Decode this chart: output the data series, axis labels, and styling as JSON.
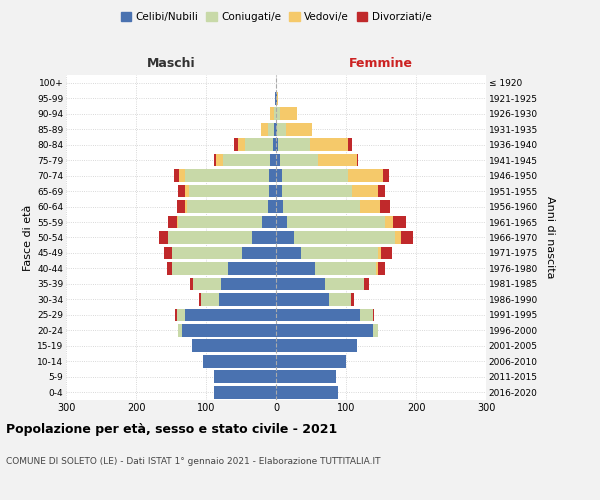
{
  "age_groups": [
    "0-4",
    "5-9",
    "10-14",
    "15-19",
    "20-24",
    "25-29",
    "30-34",
    "35-39",
    "40-44",
    "45-49",
    "50-54",
    "55-59",
    "60-64",
    "65-69",
    "70-74",
    "75-79",
    "80-84",
    "85-89",
    "90-94",
    "95-99",
    "100+"
  ],
  "birth_years": [
    "2016-2020",
    "2011-2015",
    "2006-2010",
    "2001-2005",
    "1996-2000",
    "1991-1995",
    "1986-1990",
    "1981-1985",
    "1976-1980",
    "1971-1975",
    "1966-1970",
    "1961-1965",
    "1956-1960",
    "1951-1955",
    "1946-1950",
    "1941-1945",
    "1936-1940",
    "1931-1935",
    "1926-1930",
    "1921-1925",
    "≤ 1920"
  ],
  "maschi": {
    "celibi": [
      88,
      88,
      105,
      120,
      135,
      130,
      82,
      78,
      68,
      48,
      35,
      20,
      12,
      10,
      10,
      8,
      5,
      3,
      0,
      1,
      0
    ],
    "coniugati": [
      0,
      0,
      0,
      0,
      5,
      12,
      25,
      40,
      80,
      100,
      120,
      120,
      115,
      115,
      120,
      68,
      40,
      8,
      3,
      1,
      0
    ],
    "vedovi": [
      0,
      0,
      0,
      0,
      0,
      0,
      0,
      0,
      0,
      0,
      0,
      2,
      3,
      5,
      8,
      10,
      10,
      10,
      5,
      0,
      0
    ],
    "divorziati": [
      0,
      0,
      0,
      0,
      0,
      2,
      3,
      5,
      8,
      12,
      12,
      12,
      12,
      10,
      8,
      2,
      5,
      0,
      0,
      0,
      0
    ]
  },
  "femmine": {
    "nubili": [
      88,
      85,
      100,
      115,
      138,
      120,
      75,
      70,
      55,
      35,
      25,
      15,
      10,
      8,
      8,
      5,
      3,
      2,
      0,
      1,
      0
    ],
    "coniugate": [
      0,
      0,
      0,
      0,
      8,
      18,
      32,
      55,
      88,
      110,
      145,
      140,
      110,
      100,
      95,
      55,
      45,
      12,
      5,
      0,
      0
    ],
    "vedove": [
      0,
      0,
      0,
      0,
      0,
      0,
      0,
      0,
      3,
      5,
      8,
      12,
      28,
      38,
      50,
      55,
      55,
      38,
      25,
      2,
      0
    ],
    "divorziate": [
      0,
      0,
      0,
      0,
      0,
      2,
      5,
      8,
      10,
      15,
      18,
      18,
      15,
      10,
      8,
      2,
      5,
      0,
      0,
      0,
      0
    ]
  },
  "colors": {
    "celibi": "#4a72b0",
    "coniugati": "#c8d9a8",
    "vedovi": "#f5c96a",
    "divorziati": "#c0292b"
  },
  "xlim": 300,
  "title": "Popolazione per età, sesso e stato civile - 2021",
  "subtitle": "COMUNE DI SOLETO (LE) - Dati ISTAT 1° gennaio 2021 - Elaborazione TUTTITALIA.IT",
  "ylabel_left": "Fasce di età",
  "ylabel_right": "Anni di nascita",
  "xlabel_left": "Maschi",
  "xlabel_right": "Femmine",
  "legend_labels": [
    "Celibi/Nubili",
    "Coniugati/e",
    "Vedovi/e",
    "Divorziati/e"
  ],
  "bg_color": "#f2f2f2",
  "plot_bg": "#ffffff"
}
